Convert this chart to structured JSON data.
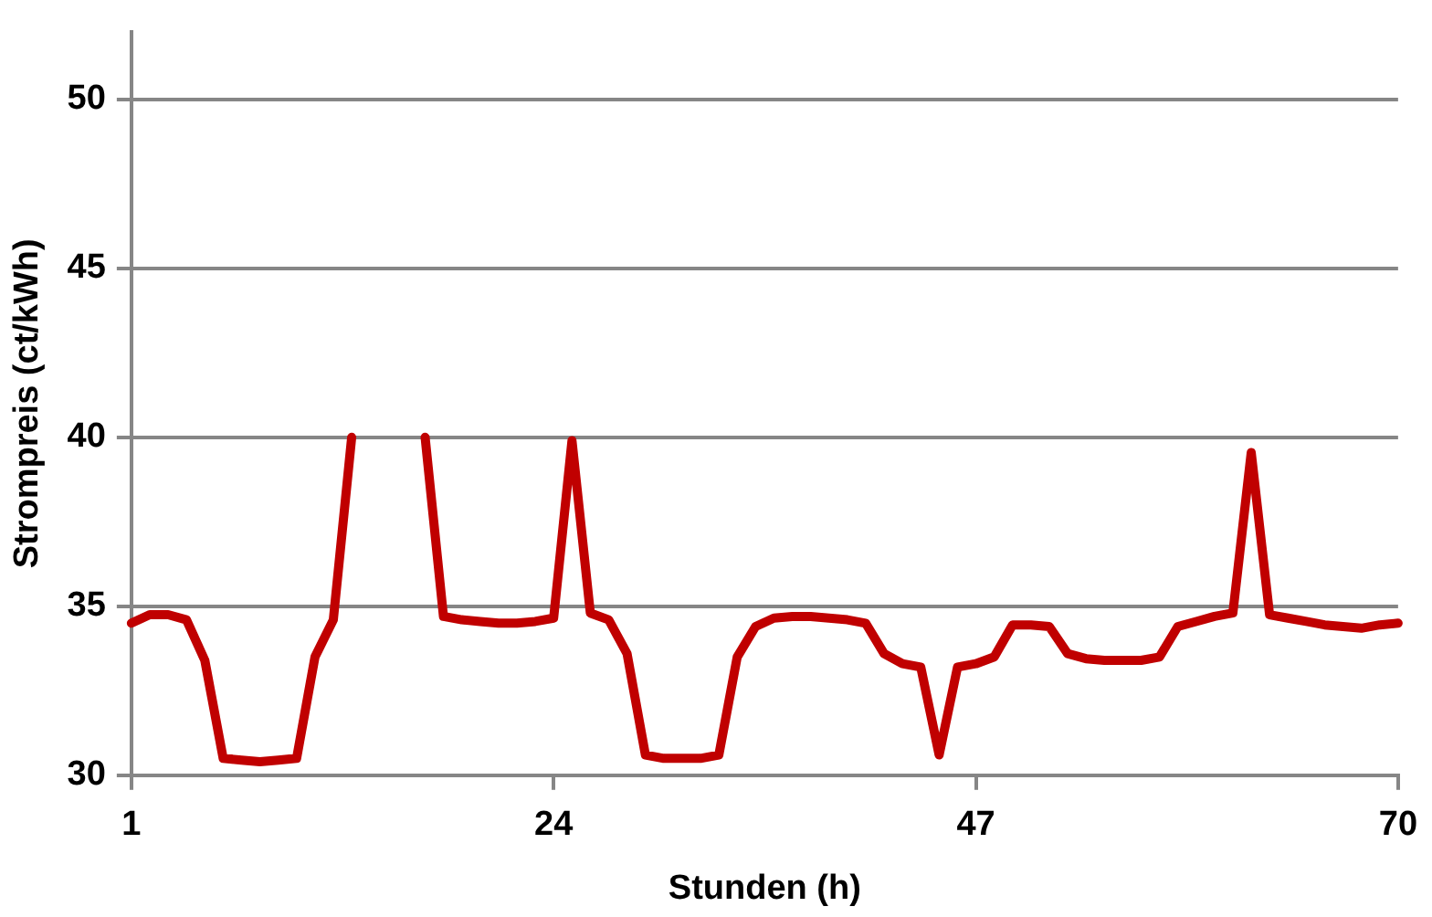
{
  "chart_data": {
    "type": "line",
    "xlabel": "Stunden (h)",
    "ylabel": "Strompreis (ct/kWh)",
    "x": [
      1,
      2,
      3,
      4,
      5,
      6,
      7,
      8,
      9,
      10,
      11,
      12,
      13,
      14,
      15,
      16,
      17,
      18,
      19,
      20,
      21,
      22,
      23,
      24,
      25,
      26,
      27,
      28,
      29,
      30,
      31,
      32,
      33,
      34,
      35,
      36,
      37,
      38,
      39,
      40,
      41,
      42,
      43,
      44,
      45,
      46,
      47,
      48,
      49,
      50,
      51,
      52,
      53,
      54,
      55,
      56,
      57,
      58,
      59,
      60,
      61,
      62,
      63,
      64,
      65,
      66,
      67,
      68,
      69,
      70
    ],
    "series": [
      {
        "color": "#c00000",
        "values": [
          34.5,
          34.75,
          34.75,
          34.6,
          33.4,
          30.5,
          30.45,
          30.4,
          30.45,
          30.5,
          33.5,
          34.6,
          40,
          null,
          null,
          null,
          40,
          34.7,
          34.6,
          34.55,
          34.5,
          34.5,
          34.55,
          34.65,
          39.9,
          34.8,
          34.6,
          33.6,
          30.6,
          30.5,
          30.5,
          30.5,
          30.6,
          33.5,
          34.4,
          34.65,
          34.7,
          34.7,
          34.65,
          34.6,
          34.5,
          33.6,
          33.3,
          33.2,
          30.6,
          33.2,
          33.3,
          33.5,
          34.45,
          34.45,
          34.4,
          33.6,
          33.45,
          33.4,
          33.4,
          33.4,
          33.5,
          34.4,
          34.55,
          34.7,
          34.8,
          39.55,
          34.75,
          34.65,
          34.55,
          34.45,
          34.4,
          34.35,
          34.45,
          34.5
        ]
      }
    ],
    "xlim": [
      1,
      70
    ],
    "xticks": [
      1,
      24,
      47,
      70
    ],
    "ylim": [
      30,
      52
    ],
    "yticks": [
      30,
      35,
      40,
      45,
      50
    ],
    "grid": "y",
    "marker": "none",
    "line_style": "solid",
    "legend": false
  }
}
